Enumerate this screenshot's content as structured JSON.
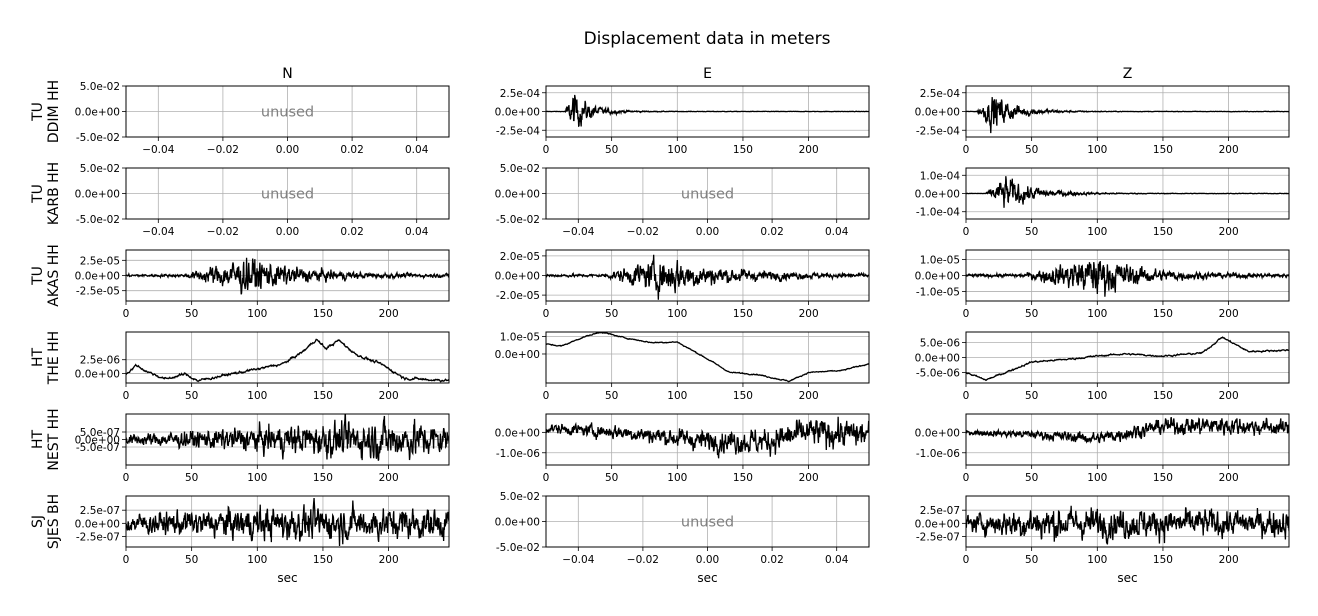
{
  "figure": {
    "title": "Displacement data in meters"
  },
  "columns": [
    "N",
    "E",
    "Z"
  ],
  "rows": [
    {
      "net": "TU",
      "sta": "DDIM HH"
    },
    {
      "net": "TU",
      "sta": "KARB HH"
    },
    {
      "net": "TU",
      "sta": "AKAS HH"
    },
    {
      "net": "HT",
      "sta": "THE HH"
    },
    {
      "net": "HT",
      "sta": "NEST HH"
    },
    {
      "net": "SJ",
      "sta": "SJES BH"
    }
  ],
  "unused_label": "unused",
  "xlabel": "sec",
  "chart_data": [
    {
      "type": "line",
      "row": 0,
      "col": 0,
      "unused": true,
      "xlim": [
        -0.05,
        0.05
      ],
      "ylim": [
        -0.05,
        0.05
      ],
      "xticks": [
        "−0.04",
        "−0.02",
        "0.00",
        "0.02",
        "0.04"
      ],
      "xtick_values": [
        -0.04,
        -0.02,
        0,
        0.02,
        0.04
      ],
      "yticks": [
        "5.0e-02",
        "0.0e+00",
        "-5.0e-02"
      ],
      "ytick_values": [
        0.05,
        0,
        -0.05
      ],
      "xlabel": ""
    },
    {
      "type": "line",
      "row": 0,
      "col": 1,
      "unused": false,
      "xlim": [
        0,
        246
      ],
      "ylim": [
        -0.00034,
        0.00034
      ],
      "xticks": [
        "0",
        "50",
        "100",
        "150",
        "200"
      ],
      "xtick_values": [
        0,
        50,
        100,
        150,
        200
      ],
      "yticks": [
        "2.5e-04",
        "0.0e+00",
        "-2.5e-04"
      ],
      "ytick_values": [
        0.00025,
        0,
        -0.00025
      ],
      "xlabel": "",
      "trace": {
        "onset": 14,
        "peak_t": 21,
        "peak": 0.00034,
        "decay": 14,
        "base": 4e-06,
        "noise": 4e-06
      }
    },
    {
      "type": "line",
      "row": 0,
      "col": 2,
      "unused": false,
      "xlim": [
        0,
        246
      ],
      "ylim": [
        -0.00034,
        0.00034
      ],
      "xticks": [
        "0",
        "50",
        "100",
        "150",
        "200"
      ],
      "xtick_values": [
        0,
        50,
        100,
        150,
        200
      ],
      "yticks": [
        "2.5e-04",
        "0.0e+00",
        "-2.5e-04"
      ],
      "ytick_values": [
        0.00025,
        0,
        -0.00025
      ],
      "xlabel": "",
      "trace": {
        "onset": 8,
        "peak_t": 21,
        "peak": 0.00034,
        "decay": 18,
        "base": 4e-06,
        "noise": 4e-06
      }
    },
    {
      "type": "line",
      "row": 1,
      "col": 0,
      "unused": true,
      "xlim": [
        -0.05,
        0.05
      ],
      "ylim": [
        -0.05,
        0.05
      ],
      "xticks": [
        "−0.04",
        "−0.02",
        "0.00",
        "0.02",
        "0.04"
      ],
      "xtick_values": [
        -0.04,
        -0.02,
        0,
        0.02,
        0.04
      ],
      "yticks": [
        "5.0e-02",
        "0.0e+00",
        "-5.0e-02"
      ],
      "ytick_values": [
        0.05,
        0,
        -0.05
      ],
      "xlabel": ""
    },
    {
      "type": "line",
      "row": 1,
      "col": 1,
      "unused": true,
      "xlim": [
        -0.05,
        0.05
      ],
      "ylim": [
        -0.05,
        0.05
      ],
      "xticks": [
        "−0.04",
        "−0.02",
        "0.00",
        "0.02",
        "0.04"
      ],
      "xtick_values": [
        -0.04,
        -0.02,
        0,
        0.02,
        0.04
      ],
      "yticks": [
        "5.0e-02",
        "0.0e+00",
        "-5.0e-02"
      ],
      "ytick_values": [
        0.05,
        0,
        -0.05
      ],
      "xlabel": ""
    },
    {
      "type": "line",
      "row": 1,
      "col": 2,
      "unused": false,
      "xlim": [
        0,
        246
      ],
      "ylim": [
        -0.00014,
        0.00014
      ],
      "xticks": [
        "0",
        "50",
        "100",
        "150",
        "200"
      ],
      "xtick_values": [
        0,
        50,
        100,
        150,
        200
      ],
      "yticks": [
        "1.0e-04",
        "0.0e+00",
        "-1.0e-04"
      ],
      "ytick_values": [
        0.0001,
        0,
        -0.0001
      ],
      "xlabel": "",
      "trace": {
        "onset": 15,
        "peak_t": 30,
        "peak": 0.00013,
        "decay": 22,
        "base": 2e-06,
        "noise": 2e-06
      }
    },
    {
      "type": "line",
      "row": 2,
      "col": 0,
      "unused": false,
      "xlim": [
        0,
        246
      ],
      "ylim": [
        -4.2e-05,
        4.2e-05
      ],
      "xticks": [
        "0",
        "50",
        "100",
        "150",
        "200"
      ],
      "xtick_values": [
        0,
        50,
        100,
        150,
        200
      ],
      "yticks": [
        "2.5e-05",
        "0.0e+00",
        "-2.5e-05"
      ],
      "ytick_values": [
        2.5e-05,
        0,
        -2.5e-05
      ],
      "xlabel": "",
      "trace": {
        "onset": 44,
        "peak_t": 93,
        "peak": 4e-05,
        "decay": 40,
        "base": 3e-06,
        "noise": 1.5e-06
      }
    },
    {
      "type": "line",
      "row": 2,
      "col": 1,
      "unused": false,
      "xlim": [
        0,
        246
      ],
      "ylim": [
        -2.6e-05,
        2.6e-05
      ],
      "xticks": [
        "0",
        "50",
        "100",
        "150",
        "200"
      ],
      "xtick_values": [
        0,
        50,
        100,
        150,
        200
      ],
      "yticks": [
        "2.0e-05",
        "0.0e+00",
        "-2.0e-05"
      ],
      "ytick_values": [
        2e-05,
        0,
        -2e-05
      ],
      "xlabel": "",
      "trace": {
        "onset": 44,
        "peak_t": 92,
        "peak": 2.5e-05,
        "decay": 45,
        "base": 2e-06,
        "noise": 1e-06
      }
    },
    {
      "type": "line",
      "row": 2,
      "col": 2,
      "unused": false,
      "xlim": [
        0,
        246
      ],
      "ylim": [
        -1.6e-05,
        1.6e-05
      ],
      "xticks": [
        "0",
        "50",
        "100",
        "150",
        "200"
      ],
      "xtick_values": [
        0,
        50,
        100,
        150,
        200
      ],
      "yticks": [
        "1.0e-05",
        "0.0e+00",
        "-1.0e-05"
      ],
      "ytick_values": [
        1e-05,
        0,
        -1e-05
      ],
      "xlabel": "",
      "trace": {
        "onset": 42,
        "peak_t": 100,
        "peak": 1.6e-05,
        "decay": 35,
        "base": 1.3e-06,
        "noise": 7e-07
      }
    },
    {
      "type": "line",
      "row": 3,
      "col": 0,
      "unused": false,
      "xlim": [
        0,
        246
      ],
      "ylim": [
        -1.7e-06,
        7.5e-06
      ],
      "xticks": [
        "0",
        "50",
        "100",
        "150",
        "200"
      ],
      "xtick_values": [
        0,
        50,
        100,
        150,
        200
      ],
      "yticks": [
        "2.5e-06",
        "0.0e+00"
      ],
      "ytick_values": [
        2.5e-06,
        0
      ],
      "xlabel": "",
      "points": [
        [
          0,
          0
        ],
        [
          8,
          1.5e-06
        ],
        [
          15,
          5e-07
        ],
        [
          30,
          -1e-06
        ],
        [
          45,
          -1e-07
        ],
        [
          55,
          -1.3e-06
        ],
        [
          75,
          -3e-07
        ],
        [
          100,
          8e-07
        ],
        [
          120,
          1.8e-06
        ],
        [
          135,
          4e-06
        ],
        [
          145,
          6.2e-06
        ],
        [
          152,
          4.5e-06
        ],
        [
          162,
          6e-06
        ],
        [
          175,
          3.5e-06
        ],
        [
          195,
          1.6e-06
        ],
        [
          212,
          -8e-07
        ],
        [
          230,
          -1.1e-06
        ],
        [
          246,
          -1.2e-06
        ]
      ],
      "noise": 2.5e-07
    },
    {
      "type": "line",
      "row": 3,
      "col": 1,
      "unused": false,
      "xlim": [
        0,
        246
      ],
      "ylim": [
        -1.65e-05,
        1.25e-05
      ],
      "xticks": [
        "0",
        "50",
        "100",
        "150",
        "200"
      ],
      "xtick_values": [
        0,
        50,
        100,
        150,
        200
      ],
      "yticks": [
        "1.0e-05",
        "0.0e+00"
      ],
      "ytick_values": [
        1e-05,
        0
      ],
      "xlabel": "",
      "points": [
        [
          0,
          5.6e-06
        ],
        [
          12,
          4.5e-06
        ],
        [
          28,
          9.5e-06
        ],
        [
          42,
          1.25e-05
        ],
        [
          58,
          9.5e-06
        ],
        [
          80,
          6.5e-06
        ],
        [
          100,
          6.8e-06
        ],
        [
          120,
          -1.5e-06
        ],
        [
          140,
          -1.05e-05
        ],
        [
          160,
          -1.15e-05
        ],
        [
          185,
          -1.55e-05
        ],
        [
          200,
          -1.05e-05
        ],
        [
          225,
          -9.5e-06
        ],
        [
          246,
          -5.5e-06
        ]
      ],
      "noise": 3.5e-07
    },
    {
      "type": "line",
      "row": 3,
      "col": 2,
      "unused": false,
      "xlim": [
        0,
        246
      ],
      "ylim": [
        -8.5e-06,
        8.5e-06
      ],
      "xticks": [
        "0",
        "50",
        "100",
        "150",
        "200"
      ],
      "xtick_values": [
        0,
        50,
        100,
        150,
        200
      ],
      "yticks": [
        "5.0e-06",
        "0.0e+00",
        "-5.0e-06"
      ],
      "ytick_values": [
        5e-06,
        0,
        -5e-06
      ],
      "xlabel": "",
      "points": [
        [
          0,
          -5e-06
        ],
        [
          15,
          -7.5e-06
        ],
        [
          30,
          -5e-06
        ],
        [
          50,
          -1.5e-06
        ],
        [
          80,
          -5e-07
        ],
        [
          100,
          5e-07
        ],
        [
          120,
          1.2e-06
        ],
        [
          150,
          5e-07
        ],
        [
          180,
          1.5e-06
        ],
        [
          195,
          6.8e-06
        ],
        [
          215,
          2e-06
        ],
        [
          246,
          2.5e-06
        ]
      ],
      "noise": 3e-07
    },
    {
      "type": "line",
      "row": 4,
      "col": 0,
      "unused": false,
      "xlim": [
        0,
        246
      ],
      "ylim": [
        -1.7e-06,
        1.7e-06
      ],
      "xticks": [
        "0",
        "50",
        "100",
        "150",
        "200"
      ],
      "xtick_values": [
        0,
        50,
        100,
        150,
        200
      ],
      "yticks": [
        "5.0e-07",
        "0.0e+00",
        "-5.0e-07"
      ],
      "ytick_values": [
        5e-07,
        0,
        -5e-07
      ],
      "xlabel": "",
      "trace": {
        "onset": 0,
        "peak_t": 200,
        "peak": 1.4e-06,
        "decay": 120,
        "base": 4.5e-07,
        "noise": 2e-07
      }
    },
    {
      "type": "line",
      "row": 4,
      "col": 1,
      "unused": false,
      "xlim": [
        0,
        246
      ],
      "ylim": [
        -1.6e-06,
        9e-07
      ],
      "xticks": [
        "0",
        "50",
        "100",
        "150",
        "200"
      ],
      "xtick_values": [
        0,
        50,
        100,
        150,
        200
      ],
      "yticks": [
        "0.0e+00",
        "-1.0e-06"
      ],
      "ytick_values": [
        0,
        -1e-06
      ],
      "xlabel": "",
      "trace": {
        "onset": 0,
        "peak_t": 210,
        "peak": 7e-07,
        "decay": 120,
        "base": 3e-07,
        "noise": 1.2e-07
      },
      "points": [
        [
          0,
          2e-07
        ],
        [
          60,
          0
        ],
        [
          120,
          -4e-07
        ],
        [
          170,
          -4.5e-07
        ],
        [
          200,
          0
        ],
        [
          246,
          -1e-07
        ]
      ]
    },
    {
      "type": "line",
      "row": 4,
      "col": 2,
      "unused": false,
      "xlim": [
        0,
        246
      ],
      "ylim": [
        -1.6e-06,
        9e-07
      ],
      "xticks": [
        "0",
        "50",
        "100",
        "150",
        "200"
      ],
      "xtick_values": [
        0,
        50,
        100,
        150,
        200
      ],
      "yticks": [
        "0.0e+00",
        "-1.0e-06"
      ],
      "ytick_values": [
        0,
        -1e-06
      ],
      "xlabel": "",
      "trace": {
        "onset": 0,
        "peak_t": 200,
        "peak": 5e-07,
        "decay": 100,
        "base": 1.5e-07,
        "noise": 1e-07
      },
      "points": [
        [
          0,
          0
        ],
        [
          50,
          -1e-07
        ],
        [
          100,
          -3e-07
        ],
        [
          150,
          3e-07
        ],
        [
          200,
          3.5e-07
        ],
        [
          246,
          2e-07
        ]
      ]
    },
    {
      "type": "line",
      "row": 5,
      "col": 0,
      "unused": false,
      "xlim": [
        0,
        246
      ],
      "ylim": [
        -4.5e-07,
        5.2e-07
      ],
      "xticks": [
        "0",
        "50",
        "100",
        "150",
        "200"
      ],
      "xtick_values": [
        0,
        50,
        100,
        150,
        200
      ],
      "yticks": [
        "2.5e-07",
        "0.0e+00",
        "-2.5e-07"
      ],
      "ytick_values": [
        2.5e-07,
        0,
        -2.5e-07
      ],
      "xlabel": "sec",
      "trace": {
        "onset": 0,
        "peak_t": 120,
        "peak": 2e-07,
        "decay": 400,
        "base": 2.5e-07,
        "noise": 1e-07
      }
    },
    {
      "type": "line",
      "row": 5,
      "col": 1,
      "unused": true,
      "xlim": [
        -0.05,
        0.05
      ],
      "ylim": [
        -0.05,
        0.05
      ],
      "xticks": [
        "−0.04",
        "−0.02",
        "0.00",
        "0.02",
        "0.04"
      ],
      "xtick_values": [
        -0.04,
        -0.02,
        0,
        0.02,
        0.04
      ],
      "yticks": [
        "5.0e-02",
        "0.0e+00",
        "-5.0e-02"
      ],
      "ytick_values": [
        0.05,
        0,
        -0.05
      ],
      "xlabel": "sec"
    },
    {
      "type": "line",
      "row": 5,
      "col": 2,
      "unused": false,
      "xlim": [
        0,
        246
      ],
      "ylim": [
        -4.5e-07,
        5.2e-07
      ],
      "xticks": [
        "0",
        "50",
        "100",
        "150",
        "200"
      ],
      "xtick_values": [
        0,
        50,
        100,
        150,
        200
      ],
      "yticks": [
        "2.5e-07",
        "0.0e+00",
        "-2.5e-07"
      ],
      "ytick_values": [
        2.5e-07,
        0,
        -2.5e-07
      ],
      "xlabel": "sec",
      "trace": {
        "onset": 0,
        "peak_t": 50,
        "peak": 2e-07,
        "decay": 400,
        "base": 2.2e-07,
        "noise": 1e-07
      }
    }
  ]
}
